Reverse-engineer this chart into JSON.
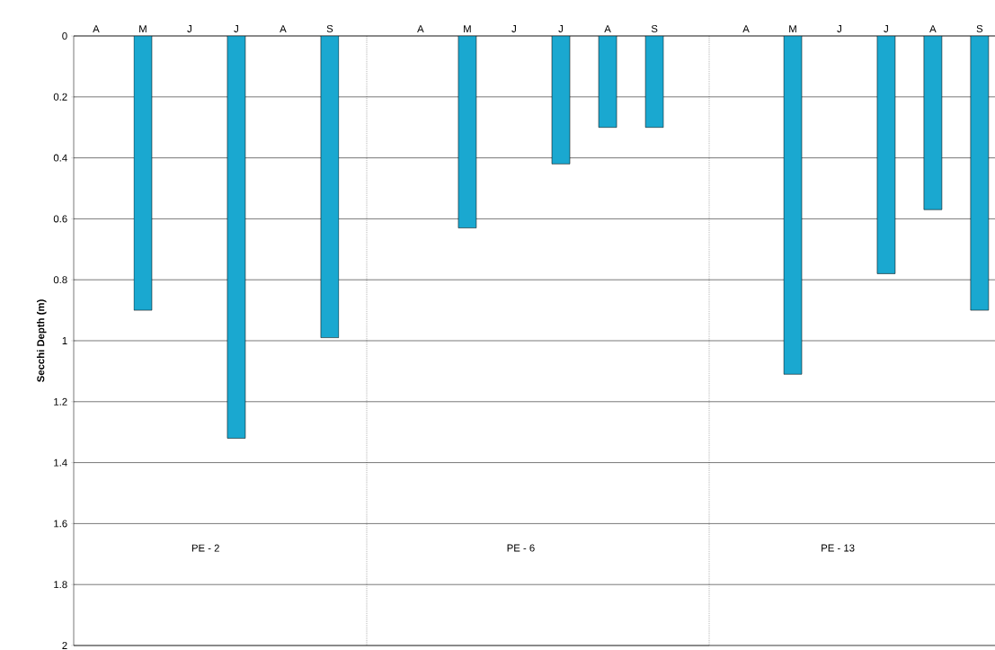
{
  "chart_data": [
    {
      "type": "bar",
      "ylabel": "Secchi Depth (m)",
      "categories": [
        "A",
        "M",
        "J",
        "J",
        "A",
        "S"
      ],
      "values": [
        null,
        0.9,
        null,
        1.32,
        null,
        0.99
      ],
      "color": "#1aa8d0",
      "ylim": [
        2,
        0
      ],
      "yticks": [
        0,
        0.2,
        0.4,
        0.6,
        0.8,
        1,
        1.2,
        1.4,
        1.6,
        1.8,
        2
      ],
      "grid": "y",
      "annotations": [
        "PE - 2"
      ]
    },
    {
      "type": "bar",
      "categories": [
        "A",
        "M",
        "J",
        "J",
        "A",
        "S"
      ],
      "values": [
        null,
        0.63,
        null,
        0.42,
        0.3,
        0.3
      ],
      "color": "#1aa8d0",
      "ylim": [
        2,
        0
      ],
      "yticks": [
        0,
        0.2,
        0.4,
        0.6,
        0.8,
        1,
        1.2,
        1.4,
        1.6,
        1.8,
        2
      ],
      "grid": "y",
      "tick_labels": "x",
      "annotations": [
        "PE - 6"
      ]
    },
    {
      "type": "bar",
      "categories": [
        "A",
        "M",
        "J",
        "J",
        "A",
        "S"
      ],
      "values": [
        null,
        1.11,
        null,
        0.78,
        0.57,
        0.9
      ],
      "color": "#1aa8d0",
      "ylim": [
        2,
        0
      ],
      "yticks": [
        0,
        0.2,
        0.4,
        0.6,
        0.8,
        1,
        1.2,
        1.4,
        1.6,
        1.8,
        2
      ],
      "grid": "y",
      "tick_labels": "x",
      "annotations": [
        "PE - 13"
      ]
    }
  ]
}
